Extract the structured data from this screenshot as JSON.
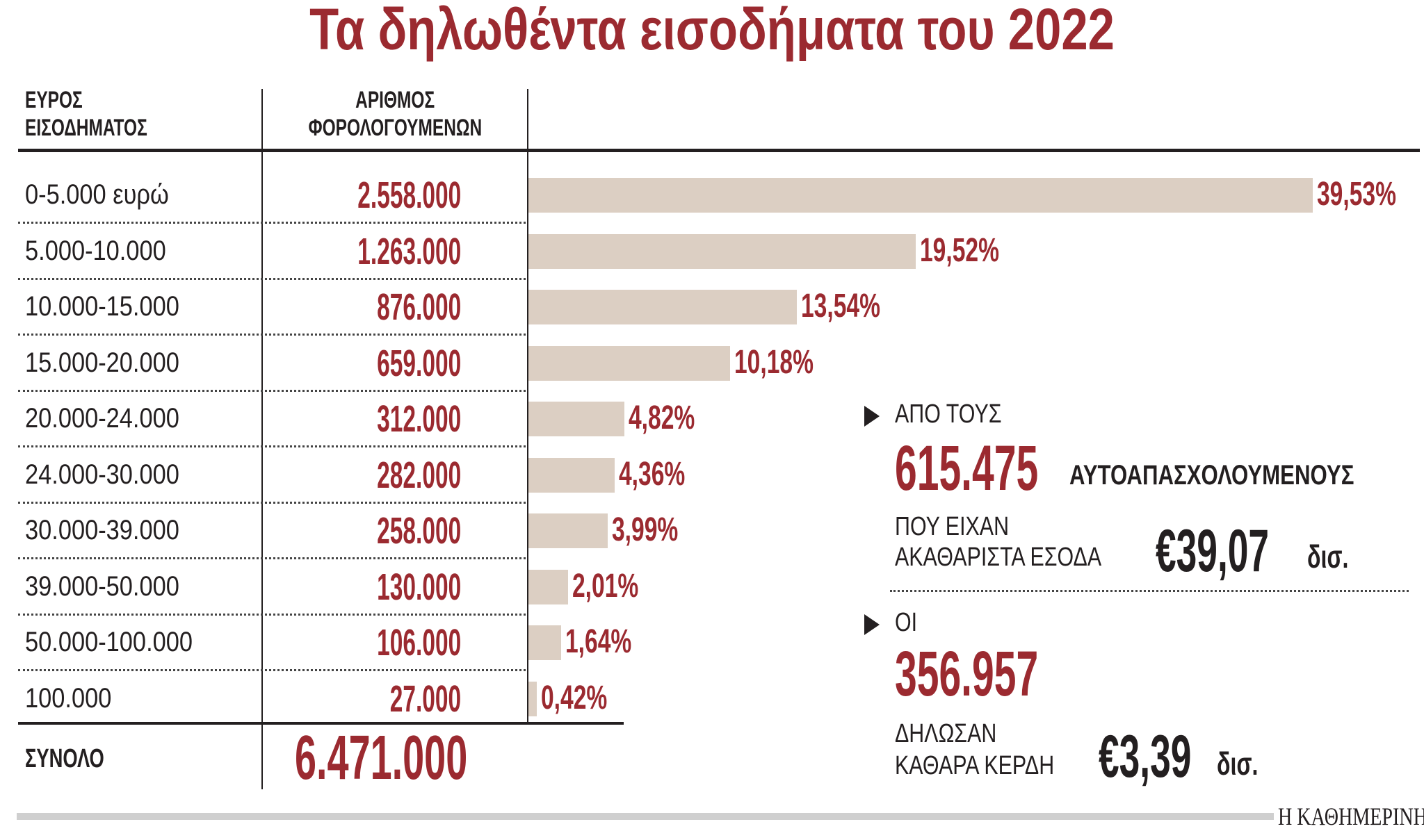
{
  "chart_data": {
    "type": "bar",
    "title": "Τα δηλωθέντα εισοδήματα του 2022",
    "orientation": "horizontal",
    "columns": [
      "ΕΥΡΟΣ ΕΙΣΟΔΗΜΑΤΟΣ",
      "ΑΡΙΘΜΟΣ ΦΟΡΟΛΟΓΟΥΜΕΝΩΝ"
    ],
    "categories": [
      "0-5.000 ευρώ",
      "5.000-10.000",
      "10.000-15.000",
      "15.000-20.000",
      "20.000-24.000",
      "24.000-30.000",
      "30.000-39.000",
      "39.000-50.000",
      "50.000-100.000",
      "100.000"
    ],
    "counts": [
      "2.558.000",
      "1.263.000",
      "876.000",
      "659.000",
      "312.000",
      "282.000",
      "258.000",
      "130.000",
      "106.000",
      "27.000"
    ],
    "values": [
      39.53,
      19.52,
      13.54,
      10.18,
      4.82,
      4.36,
      3.99,
      2.01,
      1.64,
      0.42
    ],
    "value_labels": [
      "39,53%",
      "19,52%",
      "13,54%",
      "10,18%",
      "4,82%",
      "4,36%",
      "3,99%",
      "2,01%",
      "1,64%",
      "0,42%"
    ],
    "bar_color": "#dccfc3",
    "accent_color": "#9b2a30",
    "total_label": "ΣΥΝΟΛΟ",
    "total_value": "6.471.000"
  },
  "header": {
    "col1_line1": "ΕΥΡΟΣ",
    "col1_line2": "ΕΙΣΟΔΗΜΑΤΟΣ",
    "col2_line1": "ΑΡΙΘΜΟΣ",
    "col2_line2": "ΦΟΡΟΛΟΓΟΥΜΕΝΩΝ"
  },
  "side": {
    "block1": {
      "intro": "ΑΠΟ ΤΟΥΣ",
      "number": "615.475",
      "noun": "ΑΥΤΟΑΠΑΣΧΟΛΟΥΜΕΝΟΥΣ",
      "line1": "ΠΟΥ ΕΙΧΑΝ",
      "line2": "ΑΚΑΘΑΡΙΣΤΑ ΕΣΟΔΑ",
      "amount": "€39,07",
      "unit": "δισ."
    },
    "block2": {
      "intro": "ΟΙ",
      "number": "356.957",
      "line1": "ΔΗΛΩΣΑΝ",
      "line2": "ΚΑΘΑΡΑ ΚΕΡΔΗ",
      "amount": "€3,39",
      "unit": "δισ."
    }
  },
  "footer": {
    "logo": "Η ΚΑΘΗΜΕΡΙΝΗ"
  }
}
